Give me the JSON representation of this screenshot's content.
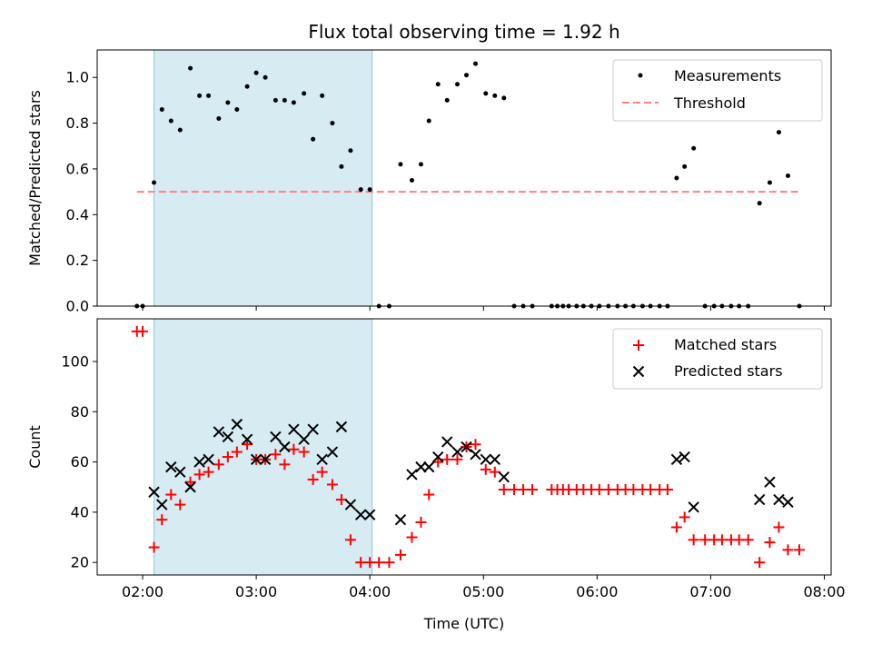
{
  "chart_data": {
    "type": "scatter",
    "title": "Flux total observing time = 1.92 h",
    "xlabel": "Time (UTC)",
    "x_unit": "hours",
    "xlim": [
      1.6,
      8.06
    ],
    "x_ticks": [
      2,
      3,
      4,
      5,
      6,
      7,
      8
    ],
    "x_tick_labels": [
      "02:00",
      "03:00",
      "04:00",
      "05:00",
      "06:00",
      "07:00",
      "08:00"
    ],
    "shaded_span": [
      2.1,
      4.02
    ],
    "shade_color": "#add8e6",
    "panels": [
      {
        "ylabel": "Matched/Predicted stars",
        "ylim": [
          0,
          1.12
        ],
        "y_ticks": [
          0,
          0.2,
          0.4,
          0.6,
          0.8,
          1.0
        ],
        "y_tick_labels": [
          "0.0",
          "0.2",
          "0.4",
          "0.6",
          "0.8",
          "1.0"
        ],
        "legend_position": "upper right",
        "threshold": {
          "name": "Threshold",
          "y": 0.5,
          "x_range": [
            1.95,
            7.8
          ],
          "color": "#ff8080"
        },
        "series": [
          {
            "name": "Measurements",
            "marker": "dot",
            "color": "#000000",
            "x": [
              1.95,
              2.0,
              2.1,
              2.17,
              2.25,
              2.33,
              2.42,
              2.5,
              2.58,
              2.67,
              2.75,
              2.83,
              2.92,
              3.0,
              3.08,
              3.17,
              3.25,
              3.33,
              3.42,
              3.5,
              3.58,
              3.67,
              3.75,
              3.83,
              3.92,
              4.0,
              4.08,
              4.17,
              4.27,
              4.37,
              4.45,
              4.52,
              4.6,
              4.68,
              4.77,
              4.85,
              4.93,
              5.02,
              5.1,
              5.18,
              5.27,
              5.35,
              5.43,
              5.6,
              5.65,
              5.7,
              5.75,
              5.82,
              5.88,
              5.95,
              6.02,
              6.1,
              6.18,
              6.25,
              6.32,
              6.4,
              6.47,
              6.55,
              6.62,
              6.7,
              6.77,
              6.85,
              6.95,
              7.03,
              7.1,
              7.18,
              7.25,
              7.33,
              7.43,
              7.52,
              7.6,
              7.68,
              7.78
            ],
            "y": [
              0,
              0,
              0.54,
              0.86,
              0.81,
              0.77,
              1.04,
              0.92,
              0.92,
              0.82,
              0.89,
              0.86,
              0.96,
              1.02,
              1.0,
              0.9,
              0.9,
              0.89,
              0.93,
              0.73,
              0.92,
              0.8,
              0.61,
              0.68,
              0.51,
              0.51,
              0,
              0,
              0.62,
              0.55,
              0.62,
              0.81,
              0.97,
              0.9,
              0.97,
              1.01,
              1.06,
              0.93,
              0.92,
              0.91,
              0,
              0,
              0,
              0,
              0,
              0,
              0,
              0,
              0,
              0,
              0,
              0,
              0,
              0,
              0,
              0,
              0,
              0,
              0,
              0.56,
              0.61,
              0.69,
              0,
              0,
              0,
              0,
              0,
              0,
              0.45,
              0.54,
              0.76,
              0.57,
              0
            ]
          }
        ]
      },
      {
        "ylabel": "Count",
        "ylim": [
          15,
          117
        ],
        "y_ticks": [
          20,
          40,
          60,
          80,
          100
        ],
        "y_tick_labels": [
          "20",
          "40",
          "60",
          "80",
          "100"
        ],
        "legend_position": "upper right",
        "series": [
          {
            "name": "Matched stars",
            "marker": "plus",
            "color": "#ff0000",
            "x": [
              1.95,
              2.0,
              2.1,
              2.17,
              2.25,
              2.33,
              2.42,
              2.5,
              2.58,
              2.67,
              2.75,
              2.83,
              2.92,
              3.0,
              3.08,
              3.17,
              3.25,
              3.33,
              3.42,
              3.5,
              3.58,
              3.67,
              3.75,
              3.83,
              3.92,
              4.0,
              4.08,
              4.17,
              4.27,
              4.37,
              4.45,
              4.52,
              4.6,
              4.68,
              4.77,
              4.85,
              4.93,
              5.02,
              5.1,
              5.18,
              5.27,
              5.35,
              5.43,
              5.6,
              5.65,
              5.7,
              5.75,
              5.82,
              5.88,
              5.95,
              6.02,
              6.1,
              6.18,
              6.25,
              6.32,
              6.4,
              6.47,
              6.55,
              6.62,
              6.7,
              6.77,
              6.85,
              6.95,
              7.03,
              7.1,
              7.18,
              7.25,
              7.33,
              7.43,
              7.52,
              7.6,
              7.68,
              7.78
            ],
            "y": [
              112,
              112,
              26,
              37,
              47,
              43,
              52,
              55,
              56,
              59,
              62,
              64,
              67,
              61,
              61,
              63,
              59,
              65,
              64,
              53,
              56,
              51,
              45,
              29,
              20,
              20,
              20,
              20,
              23,
              30,
              36,
              47,
              60,
              61,
              61,
              66,
              67,
              57,
              56,
              49,
              49,
              49,
              49,
              49,
              49,
              49,
              49,
              49,
              49,
              49,
              49,
              49,
              49,
              49,
              49,
              49,
              49,
              49,
              49,
              34,
              38,
              29,
              29,
              29,
              29,
              29,
              29,
              29,
              20,
              28,
              34,
              25,
              25
            ]
          },
          {
            "name": "Predicted stars",
            "marker": "x",
            "color": "#000000",
            "x": [
              2.1,
              2.17,
              2.25,
              2.33,
              2.42,
              2.5,
              2.58,
              2.67,
              2.75,
              2.83,
              2.92,
              3.0,
              3.08,
              3.17,
              3.25,
              3.33,
              3.42,
              3.5,
              3.58,
              3.67,
              3.75,
              3.83,
              3.92,
              4.0,
              4.27,
              4.37,
              4.45,
              4.52,
              4.6,
              4.68,
              4.77,
              4.85,
              4.93,
              5.02,
              5.1,
              5.18,
              6.7,
              6.77,
              6.85,
              7.43,
              7.52,
              7.6,
              7.68
            ],
            "y": [
              48,
              43,
              58,
              56,
              50,
              60,
              61,
              72,
              70,
              75,
              69,
              61,
              61,
              70,
              66,
              73,
              69,
              73,
              61,
              64,
              74,
              43,
              39,
              39,
              37,
              55,
              58,
              58,
              62,
              68,
              64,
              66,
              63,
              61,
              61,
              54,
              61,
              62,
              42,
              45,
              52,
              45,
              44
            ]
          }
        ]
      }
    ]
  }
}
